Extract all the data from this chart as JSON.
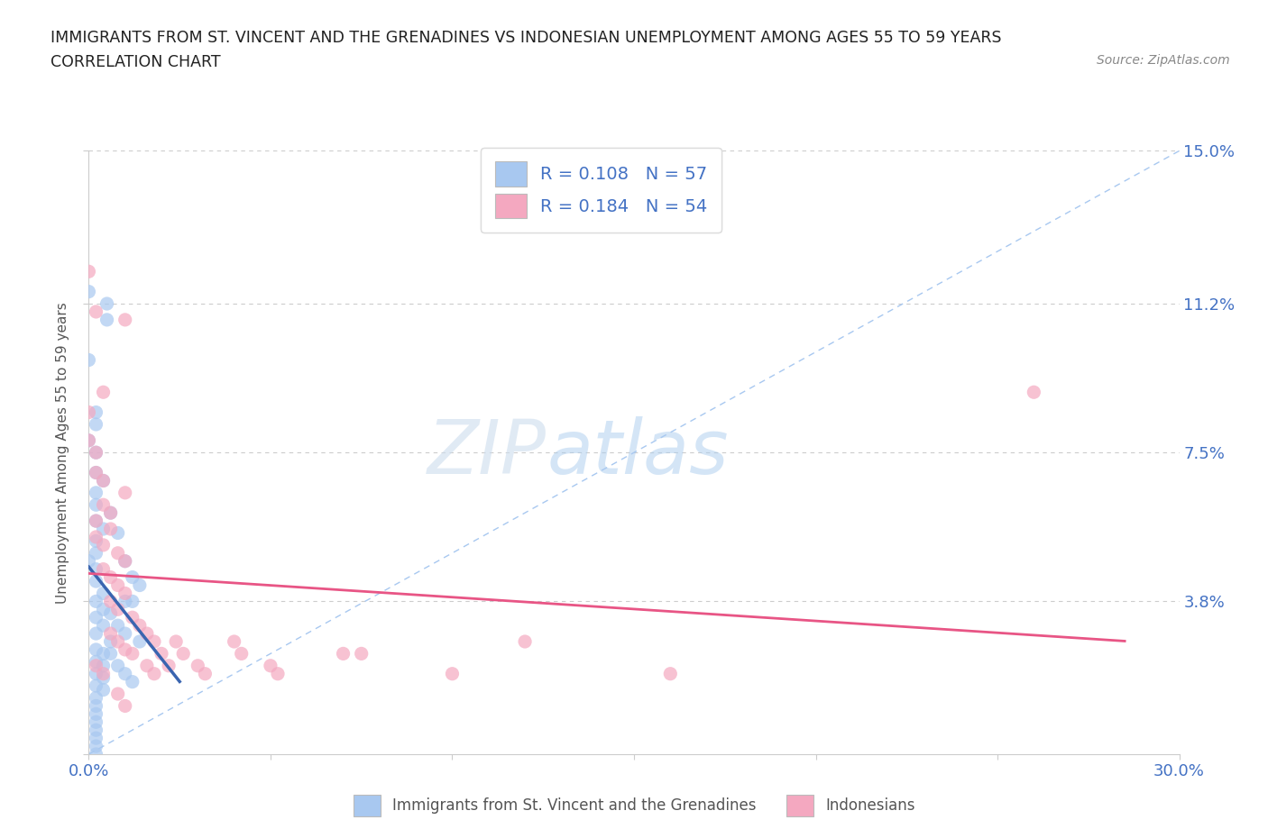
{
  "title_line1": "IMMIGRANTS FROM ST. VINCENT AND THE GRENADINES VS INDONESIAN UNEMPLOYMENT AMONG AGES 55 TO 59 YEARS",
  "title_line2": "CORRELATION CHART",
  "source_text": "Source: ZipAtlas.com",
  "ylabel": "Unemployment Among Ages 55 to 59 years",
  "xlim": [
    0.0,
    0.3
  ],
  "ylim": [
    0.0,
    0.15
  ],
  "blue_color": "#A8C8F0",
  "pink_color": "#F4A8C0",
  "blue_line_color": "#3A65B0",
  "pink_line_color": "#E85585",
  "dashed_line_color": "#A8C8F0",
  "grid_color": "#CCCCCC",
  "title_color": "#222222",
  "axis_label_color": "#555555",
  "tick_label_color": "#4472C4",
  "source_color": "#888888",
  "blue_scatter": [
    [
      0.0,
      0.115
    ],
    [
      0.005,
      0.112
    ],
    [
      0.005,
      0.108
    ],
    [
      0.0,
      0.098
    ],
    [
      0.002,
      0.085
    ],
    [
      0.002,
      0.082
    ],
    [
      0.0,
      0.078
    ],
    [
      0.002,
      0.075
    ],
    [
      0.002,
      0.07
    ],
    [
      0.004,
      0.068
    ],
    [
      0.002,
      0.065
    ],
    [
      0.002,
      0.062
    ],
    [
      0.002,
      0.058
    ],
    [
      0.004,
      0.056
    ],
    [
      0.002,
      0.053
    ],
    [
      0.002,
      0.05
    ],
    [
      0.0,
      0.048
    ],
    [
      0.002,
      0.046
    ],
    [
      0.002,
      0.043
    ],
    [
      0.004,
      0.04
    ],
    [
      0.002,
      0.038
    ],
    [
      0.004,
      0.036
    ],
    [
      0.002,
      0.034
    ],
    [
      0.004,
      0.032
    ],
    [
      0.002,
      0.03
    ],
    [
      0.006,
      0.028
    ],
    [
      0.002,
      0.026
    ],
    [
      0.004,
      0.025
    ],
    [
      0.002,
      0.023
    ],
    [
      0.004,
      0.022
    ],
    [
      0.002,
      0.02
    ],
    [
      0.004,
      0.019
    ],
    [
      0.002,
      0.017
    ],
    [
      0.004,
      0.016
    ],
    [
      0.002,
      0.014
    ],
    [
      0.002,
      0.012
    ],
    [
      0.002,
      0.01
    ],
    [
      0.002,
      0.008
    ],
    [
      0.002,
      0.006
    ],
    [
      0.002,
      0.004
    ],
    [
      0.006,
      0.06
    ],
    [
      0.008,
      0.055
    ],
    [
      0.01,
      0.048
    ],
    [
      0.012,
      0.044
    ],
    [
      0.014,
      0.042
    ],
    [
      0.01,
      0.038
    ],
    [
      0.012,
      0.038
    ],
    [
      0.006,
      0.035
    ],
    [
      0.008,
      0.032
    ],
    [
      0.01,
      0.03
    ],
    [
      0.014,
      0.028
    ],
    [
      0.006,
      0.025
    ],
    [
      0.008,
      0.022
    ],
    [
      0.01,
      0.02
    ],
    [
      0.012,
      0.018
    ],
    [
      0.002,
      0.002
    ],
    [
      0.002,
      0.0
    ]
  ],
  "pink_scatter": [
    [
      0.0,
      0.12
    ],
    [
      0.002,
      0.11
    ],
    [
      0.01,
      0.108
    ],
    [
      0.004,
      0.09
    ],
    [
      0.0,
      0.085
    ],
    [
      0.0,
      0.078
    ],
    [
      0.002,
      0.075
    ],
    [
      0.002,
      0.07
    ],
    [
      0.004,
      0.068
    ],
    [
      0.01,
      0.065
    ],
    [
      0.004,
      0.062
    ],
    [
      0.006,
      0.06
    ],
    [
      0.002,
      0.058
    ],
    [
      0.006,
      0.056
    ],
    [
      0.002,
      0.054
    ],
    [
      0.004,
      0.052
    ],
    [
      0.008,
      0.05
    ],
    [
      0.01,
      0.048
    ],
    [
      0.004,
      0.046
    ],
    [
      0.006,
      0.044
    ],
    [
      0.008,
      0.042
    ],
    [
      0.01,
      0.04
    ],
    [
      0.006,
      0.038
    ],
    [
      0.008,
      0.036
    ],
    [
      0.012,
      0.034
    ],
    [
      0.014,
      0.032
    ],
    [
      0.006,
      0.03
    ],
    [
      0.008,
      0.028
    ],
    [
      0.01,
      0.026
    ],
    [
      0.012,
      0.025
    ],
    [
      0.002,
      0.022
    ],
    [
      0.004,
      0.02
    ],
    [
      0.016,
      0.03
    ],
    [
      0.018,
      0.028
    ],
    [
      0.016,
      0.022
    ],
    [
      0.018,
      0.02
    ],
    [
      0.02,
      0.025
    ],
    [
      0.022,
      0.022
    ],
    [
      0.024,
      0.028
    ],
    [
      0.026,
      0.025
    ],
    [
      0.03,
      0.022
    ],
    [
      0.032,
      0.02
    ],
    [
      0.04,
      0.028
    ],
    [
      0.042,
      0.025
    ],
    [
      0.05,
      0.022
    ],
    [
      0.052,
      0.02
    ],
    [
      0.07,
      0.025
    ],
    [
      0.075,
      0.025
    ],
    [
      0.1,
      0.02
    ],
    [
      0.12,
      0.028
    ],
    [
      0.16,
      0.02
    ],
    [
      0.26,
      0.09
    ],
    [
      0.008,
      0.015
    ],
    [
      0.01,
      0.012
    ]
  ]
}
